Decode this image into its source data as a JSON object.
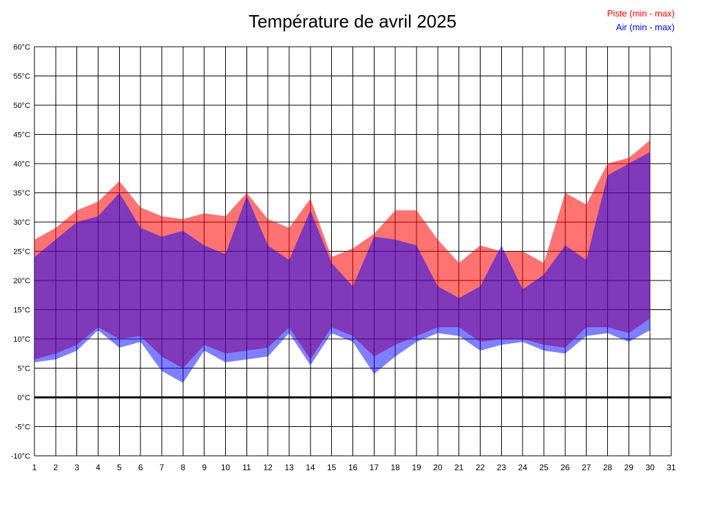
{
  "chart_data": {
    "type": "area",
    "title": "Température de avril 2025",
    "x": [
      1,
      2,
      3,
      4,
      5,
      6,
      7,
      8,
      9,
      10,
      11,
      12,
      13,
      14,
      15,
      16,
      17,
      18,
      19,
      20,
      21,
      22,
      23,
      24,
      25,
      26,
      27,
      28,
      29,
      30
    ],
    "xlim": [
      1,
      31
    ],
    "ylim": [
      -10,
      60
    ],
    "ytick_step": 5,
    "y_unit": "°C",
    "grid": "on",
    "legend_position": "top-right",
    "zero_line": true,
    "series": [
      {
        "name": "Piste (min - max)",
        "color": "#ff0000",
        "opacity": 0.55,
        "max": [
          27,
          29,
          32,
          33.5,
          37,
          32.5,
          31,
          30.5,
          31.5,
          31,
          35,
          30.5,
          29,
          34,
          24,
          25.5,
          28,
          32,
          32,
          27,
          23,
          26,
          25,
          25,
          23,
          35,
          33,
          40,
          41,
          44
        ],
        "min": [
          6.5,
          7.5,
          9,
          12,
          10,
          10.5,
          7,
          5,
          9,
          7.5,
          8,
          8.5,
          12,
          6.5,
          12,
          10.5,
          7,
          9,
          10.5,
          12,
          12,
          9.5,
          10,
          10,
          9,
          8.5,
          12,
          12,
          11,
          13.5
        ]
      },
      {
        "name": "Air (min - max)",
        "color": "#0000ff",
        "opacity": 0.5,
        "max": [
          24,
          27,
          30,
          31,
          35,
          29,
          27.5,
          28.5,
          26,
          24.5,
          34.5,
          26,
          23.5,
          32,
          23,
          19,
          27.5,
          27,
          26,
          19,
          17,
          19,
          26,
          18.5,
          21,
          26,
          23.5,
          38,
          40,
          42
        ],
        "min": [
          6,
          6.5,
          8,
          11.5,
          8.5,
          9.5,
          4.5,
          2.5,
          8,
          6,
          6.5,
          7,
          11,
          5.5,
          11,
          9.5,
          4,
          7,
          9.5,
          11,
          10.5,
          8,
          9,
          9.5,
          8,
          7.5,
          10.5,
          11,
          9.5,
          11.5
        ]
      }
    ]
  }
}
